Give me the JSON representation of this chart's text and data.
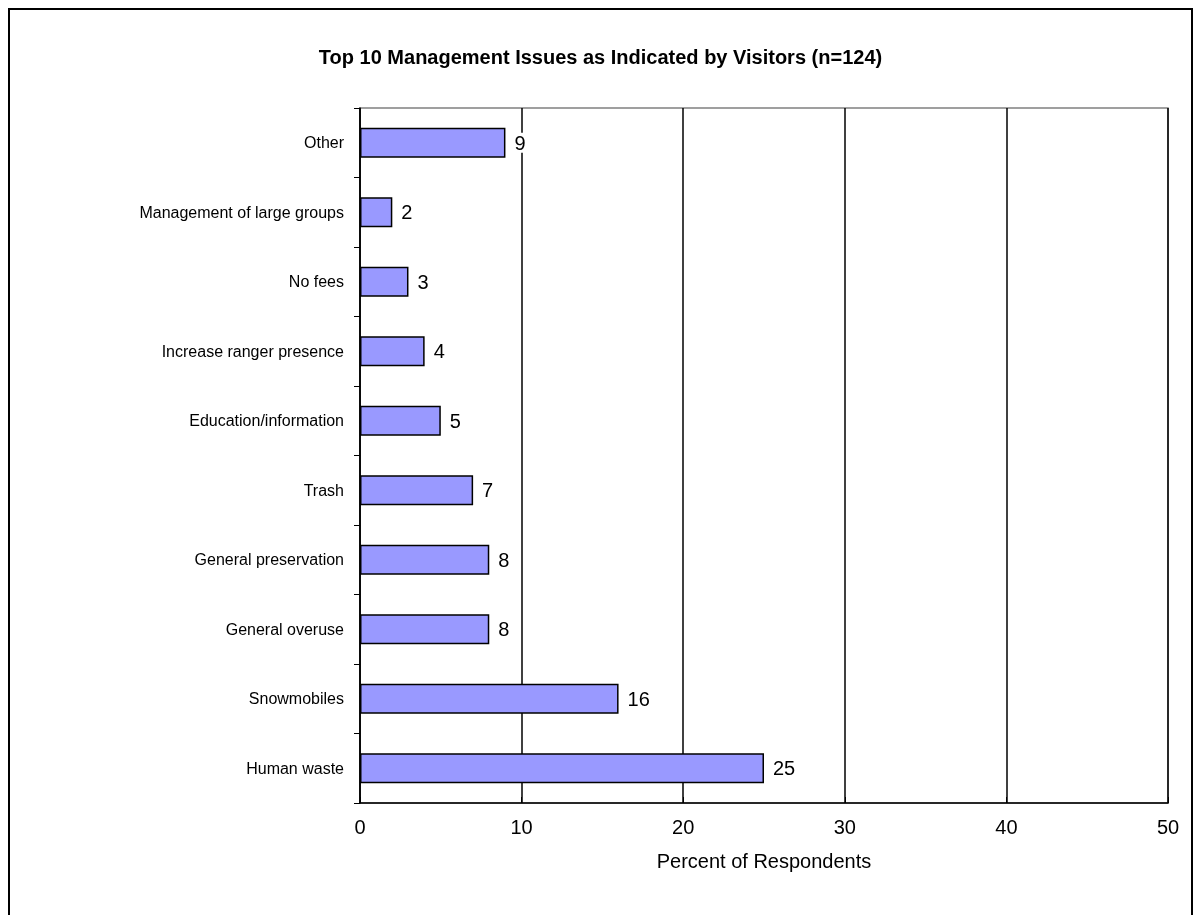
{
  "chart_data": {
    "type": "bar",
    "orientation": "horizontal",
    "title": "Top 10 Management Issues as Indicated by Visitors (n=124)",
    "xlabel": "Percent of Respondents",
    "categories": [
      "Other",
      "Management of large groups",
      "No fees",
      "Increase ranger presence",
      "Education/information",
      "Trash",
      "General preservation",
      "General overuse",
      "Snowmobiles",
      "Human waste"
    ],
    "values": [
      9,
      2,
      3,
      4,
      5,
      7,
      8,
      8,
      16,
      25
    ],
    "color": "#9999ff",
    "xlim": [
      0,
      50
    ],
    "xticks": [
      0,
      10,
      20,
      30,
      40,
      50
    ],
    "grid": "x",
    "data_labels": true
  }
}
